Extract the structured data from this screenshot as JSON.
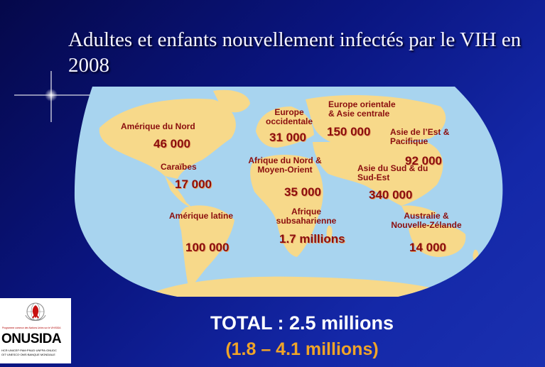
{
  "slide": {
    "title": "Adultes et enfants nouvellement infectés par le VIH en 2008"
  },
  "regions": {
    "north_america": {
      "label": "Amérique du Nord",
      "value": "46 000"
    },
    "caribbean": {
      "label": "Caraïbes",
      "value": "17 000"
    },
    "latin_america": {
      "label": "Amérique latine",
      "value": "100 000"
    },
    "western_europe": {
      "label": "Europe occidentale",
      "value": "31 000"
    },
    "eastern_europe": {
      "label": "Europe orientale & Asie centrale",
      "value": "150 000"
    },
    "north_africa": {
      "label": "Afrique du Nord & Moyen-Orient",
      "value": "35 000"
    },
    "subsaharan_africa": {
      "label": "Afrique subsaharienne",
      "value": "1.7 millions"
    },
    "south_asia": {
      "label": "Asie du Sud & du Sud-Est",
      "value": "340 000"
    },
    "east_asia": {
      "label": "Asie de l’Est & Pacifique",
      "value": "92 000"
    },
    "oceania": {
      "label": "Australie & Nouvelle-Zélande",
      "value": "14 000"
    }
  },
  "summary": {
    "total": "TOTAL : 2.5 millions",
    "range": "(1.8 – 4.1 millions)"
  },
  "logo": {
    "name": "ONUSIDA",
    "tagline": "Programme commun des Nations Unies sur le VIH/SIDA",
    "sponsors_line1": "HCR·UNICEF·PAM·PNUD·UNFPA·ONUDC",
    "sponsors_line2": "OIT·UNESCO·OMS·BANQUE MONDIALE"
  },
  "colors": {
    "background": "#0a1580",
    "ocean": "#a8d4ef",
    "land": "#f7d98a",
    "region_text": "#8b0e0e",
    "range_text": "#f0a428"
  },
  "icons": [
    "sparkle-icon",
    "unaids-emblem-icon"
  ]
}
